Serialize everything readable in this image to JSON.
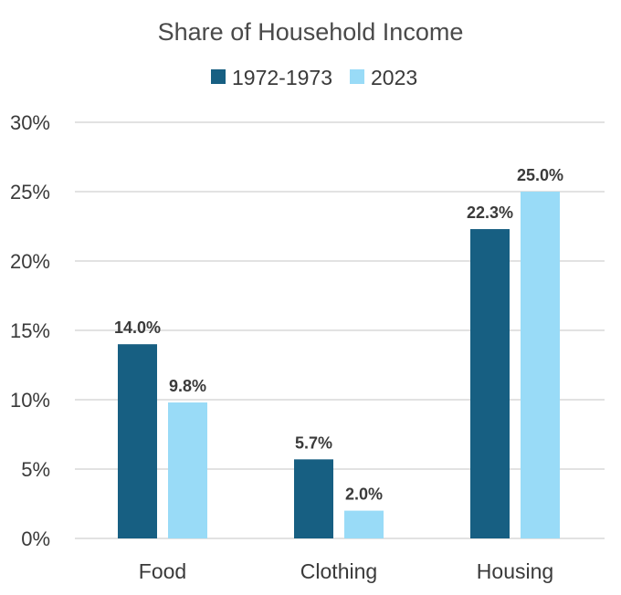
{
  "chart_data": {
    "type": "bar",
    "title": "Share of Household Income",
    "categories": [
      "Food",
      "Clothing",
      "Housing"
    ],
    "series": [
      {
        "name": "1972-1973",
        "values": [
          14.0,
          5.7,
          22.3
        ],
        "labels": [
          "14.0%",
          "5.7%",
          "22.3%"
        ],
        "color": "#175f82"
      },
      {
        "name": "2023",
        "values": [
          9.8,
          2.0,
          25.0
        ],
        "labels": [
          "9.8%",
          "2.0%",
          "25.0%"
        ],
        "color": "#99dbf7"
      }
    ],
    "yticks": [
      0,
      5,
      10,
      15,
      20,
      25,
      30
    ],
    "ytick_labels": [
      "0%",
      "5%",
      "10%",
      "15%",
      "20%",
      "25%",
      "30%"
    ],
    "ylim": [
      0,
      30
    ],
    "xlabel": "",
    "ylabel": "",
    "grid": true,
    "legend": "top-center",
    "colors": {
      "gridline": "#d9d9d9",
      "text": "#3a3a3a"
    }
  }
}
